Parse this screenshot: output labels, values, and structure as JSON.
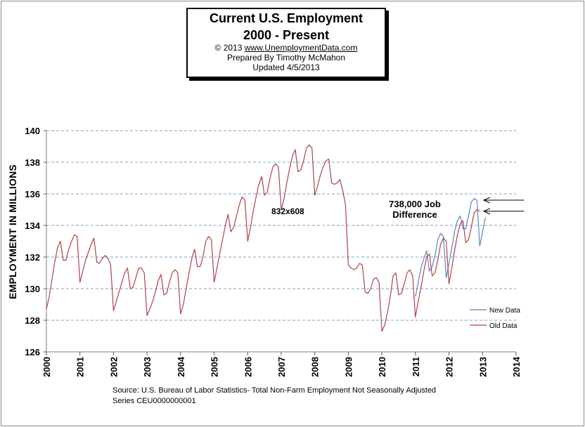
{
  "title": {
    "line1": "Current U.S. Employment",
    "line2": "2000 - Present",
    "copyright": "© 2013",
    "website": "www.UnemploymentData.com",
    "prepared_by": "Prepared By Timothy McMahon",
    "updated": "Updated 4/5/2013"
  },
  "annotations": {
    "job_difference_line1": "738,000 Job",
    "job_difference_line2": "Difference",
    "dimensions": "832x608"
  },
  "source": {
    "line1": "Source: U.S.  Bureau of Labor Statistics- Total Non-Farm Employment Not Seasonally Adjusted",
    "line2": "Series CEU0000000001"
  },
  "colors": {
    "new_data": "#5b84c4",
    "old_data": "#b0424a",
    "grid": "#4f81bd"
  },
  "chart_data": {
    "type": "line",
    "ylabel": "EMPLOYMENT  IN MILLIONS",
    "xlabel": "",
    "ylim": [
      126,
      140
    ],
    "yticks": [
      "126",
      "128",
      "130",
      "132",
      "134",
      "136",
      "138",
      "140"
    ],
    "xlim": [
      2000,
      2014
    ],
    "xticks": [
      "2000",
      "2001",
      "2002",
      "2003",
      "2004",
      "2005",
      "2006",
      "2007",
      "2008",
      "2009",
      "2010",
      "2011",
      "2012",
      "2013",
      "2014"
    ],
    "grid": "horizontal dashed",
    "legend_position": "right",
    "series": [
      {
        "name": "New Data",
        "start": 2011.0,
        "step": 0.08333,
        "values": [
          129.5,
          130.4,
          131.3,
          131.9,
          132.4,
          131.1,
          131.4,
          132.1,
          133.1,
          133.5,
          133.3,
          130.7,
          131.6,
          132.6,
          133.6,
          134.3,
          134.6,
          133.8,
          133.8,
          134.6,
          135.5,
          135.7,
          135.6,
          132.7,
          133.6,
          134.5
        ]
      },
      {
        "name": "Old Data",
        "start": 2000.0,
        "step": 0.08333,
        "values": [
          128.7,
          129.5,
          130.6,
          131.7,
          132.6,
          133.0,
          131.8,
          131.8,
          132.5,
          133.0,
          133.4,
          133.3,
          130.4,
          131.1,
          131.8,
          132.3,
          132.8,
          133.2,
          131.7,
          131.6,
          131.9,
          132.1,
          131.9,
          131.5,
          128.6,
          129.2,
          129.8,
          130.4,
          131.0,
          131.3,
          130.0,
          130.1,
          130.7,
          131.3,
          131.3,
          131.0,
          128.3,
          128.7,
          129.2,
          129.8,
          130.5,
          130.9,
          129.6,
          129.7,
          130.4,
          131.0,
          131.2,
          131.0,
          128.4,
          129.0,
          130.0,
          131.0,
          131.9,
          132.5,
          131.4,
          131.4,
          132.0,
          133.0,
          133.3,
          133.1,
          130.4,
          131.3,
          132.2,
          133.1,
          134.0,
          134.7,
          133.6,
          133.9,
          134.6,
          135.3,
          135.8,
          135.6,
          133.0,
          133.9,
          134.9,
          135.8,
          136.6,
          137.1,
          135.9,
          136.1,
          137.0,
          137.7,
          137.9,
          137.7,
          135.0,
          135.7,
          136.7,
          137.6,
          138.4,
          138.8,
          137.4,
          137.5,
          138.1,
          138.9,
          139.1,
          138.9,
          135.9,
          136.5,
          137.2,
          137.7,
          138.1,
          138.2,
          136.7,
          136.6,
          136.7,
          136.9,
          136.2,
          135.3,
          131.5,
          131.3,
          131.2,
          131.3,
          131.6,
          131.5,
          129.8,
          129.7,
          130.0,
          130.6,
          130.7,
          130.4,
          127.3,
          127.7,
          128.5,
          129.5,
          130.8,
          131.0,
          129.6,
          129.7,
          130.3,
          131.0,
          131.2,
          130.8,
          128.2,
          129.2,
          130.1,
          131.1,
          132.0,
          132.2,
          130.8,
          131.0,
          131.8,
          132.8,
          133.2,
          133.0,
          130.3,
          131.3,
          132.4,
          133.4,
          134.1,
          134.3,
          132.9,
          133.1,
          133.9,
          134.8,
          135.0,
          134.9
        ]
      }
    ]
  }
}
